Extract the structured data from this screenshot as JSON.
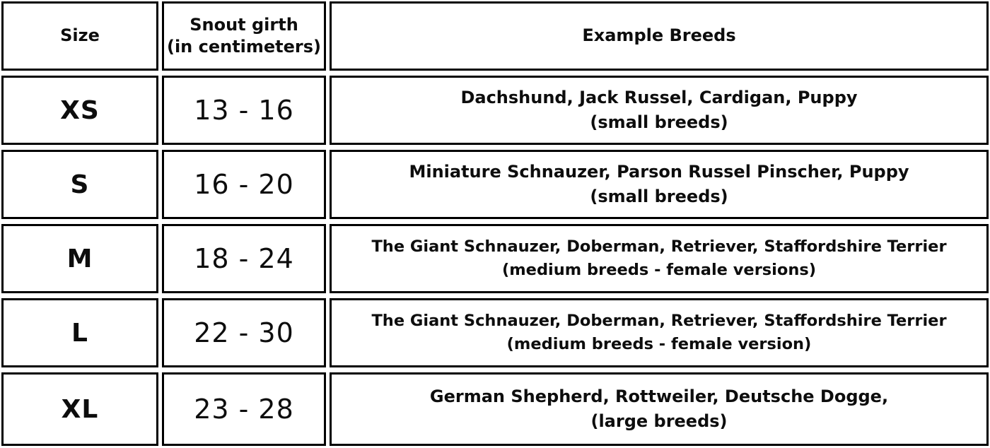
{
  "table": {
    "header": {
      "size": "Size",
      "girth": "Snout girth\n(in centimeters)",
      "breeds": "Example Breeds"
    },
    "rows": [
      {
        "size": "XS",
        "girth": "13 - 16",
        "breeds": "Dachshund, Jack Russel, Cardigan, Puppy\n(small breeds)"
      },
      {
        "size": "S",
        "girth": "16 - 20",
        "breeds": "Miniature Schnauzer, Parson Russel Pinscher, Puppy\n(small breeds)"
      },
      {
        "size": "M",
        "girth": "18 - 24",
        "breeds": "The Giant Schnauzer, Doberman, Retriever, Staffordshire Terrier\n(medium breeds - female versions)"
      },
      {
        "size": "L",
        "girth": "22 - 30",
        "breeds": "The Giant Schnauzer, Doberman, Retriever, Staffordshire Terrier\n(medium breeds - female version)"
      },
      {
        "size": "XL",
        "girth": "23 - 28",
        "breeds": "German Shepherd, Rottweiler, Deutsche Dogge,\n(large breeds)"
      }
    ],
    "colors": {
      "border": "#000000",
      "text": "#0d0d0d",
      "background": "#ffffff"
    }
  }
}
